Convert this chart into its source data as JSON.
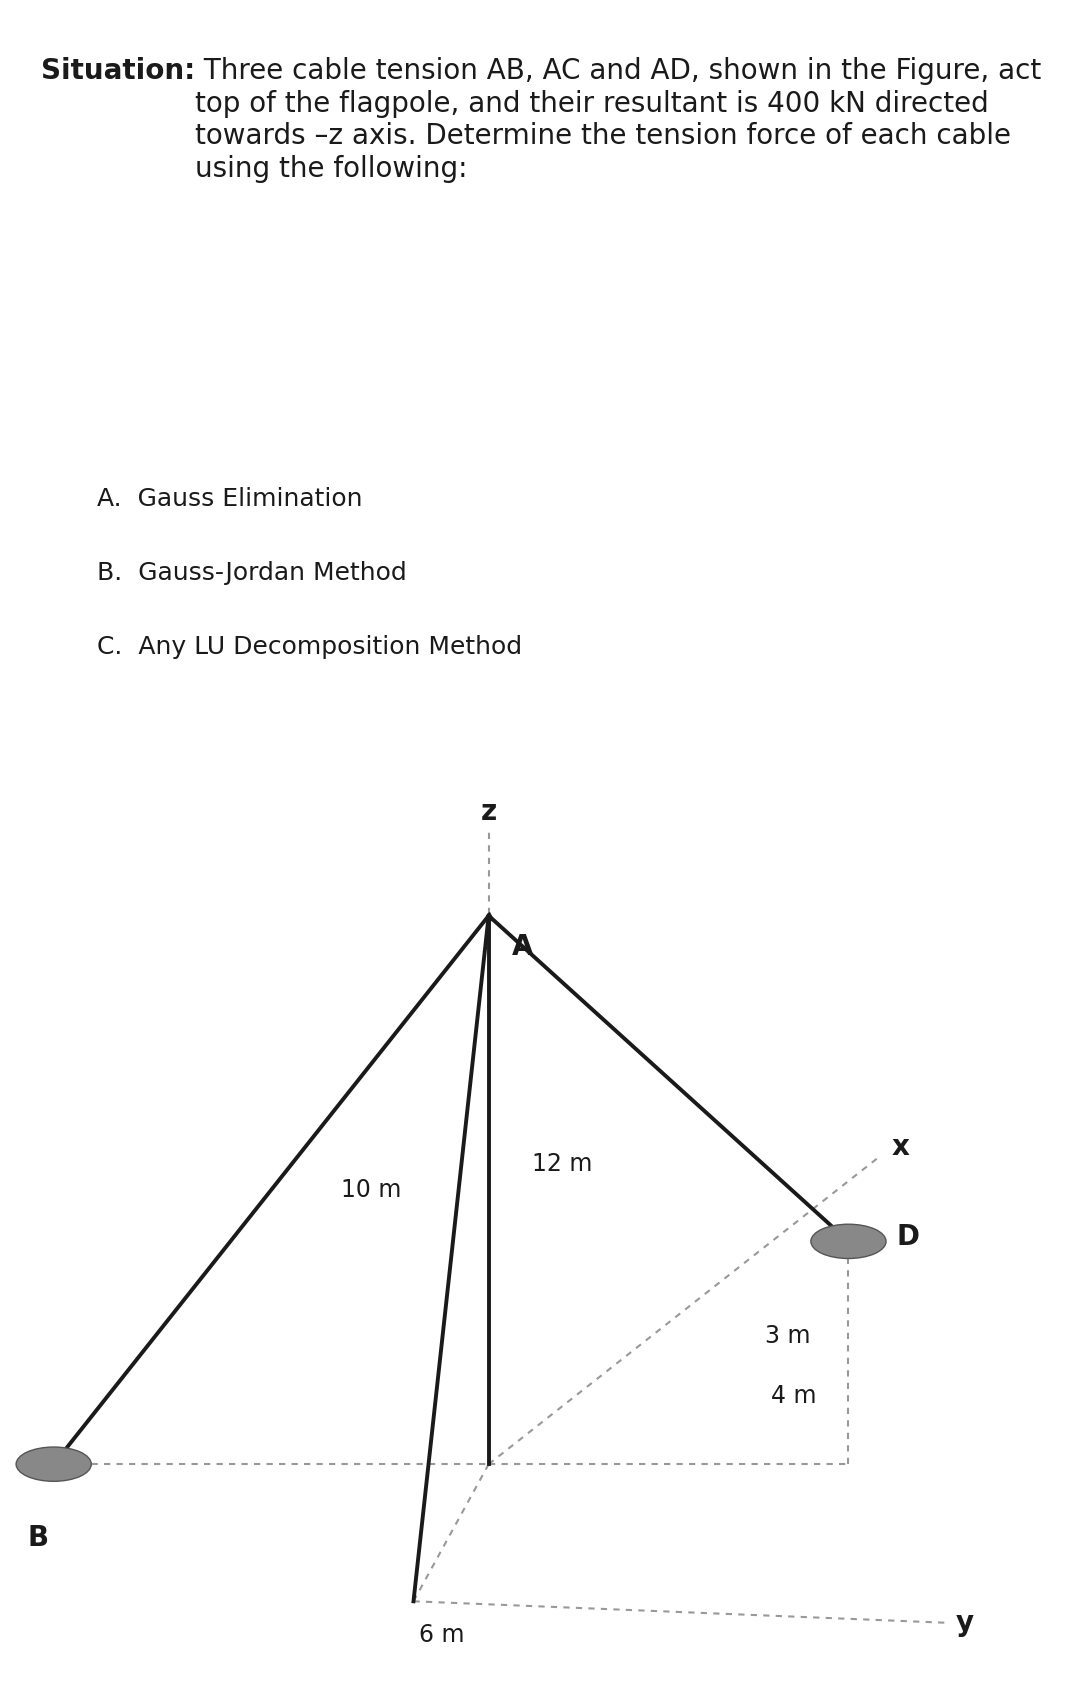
{
  "title_bold": "Situation:",
  "title_text": " Three cable tension AB, AC and AD, shown in the Figure, act top of the flagpole, and their resultant is 400 kN directed towards –z axis. Determine the tension force of each cable using the following:",
  "list_items": [
    "A.  Gauss Elimination",
    "B.  Gauss-Jordan Method",
    "C.  Any LU Decomposition Method"
  ],
  "bg_color": "#ffffff",
  "header_bar_color": "#4a4a4a",
  "footer_bar_color": "#2e75b6",
  "label_12m": "12 m",
  "label_10m": "10 m",
  "label_6m": "6 m",
  "label_3m": "3 m",
  "label_4m": "4 m",
  "label_x": "x",
  "label_y": "y",
  "label_z": "z",
  "label_A": "A",
  "label_B": "B",
  "label_D": "D",
  "line_color": "#1a1a1a",
  "dashed_color": "#999999",
  "dot_color": "#888888",
  "text_color": "#1a1a1a",
  "title_fontsize": 20,
  "list_fontsize": 18
}
